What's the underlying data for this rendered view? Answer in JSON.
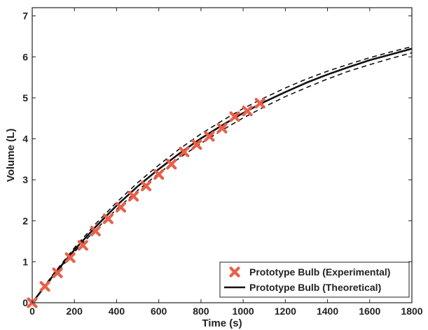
{
  "chart_data": {
    "type": "line",
    "title": "",
    "xlabel": "Time (s)",
    "ylabel": "Volume (L)",
    "xlim": [
      0,
      1800
    ],
    "ylim": [
      0,
      7.2
    ],
    "x_ticks": [
      0,
      200,
      400,
      600,
      800,
      1000,
      1200,
      1400,
      1600,
      1800
    ],
    "y_ticks": [
      0,
      1,
      2,
      3,
      4,
      5,
      6,
      7
    ],
    "grid": false,
    "legend_position": "bottom-right",
    "series": [
      {
        "name": "Prototype Bulb (Experimental)",
        "kind": "scatter",
        "marker": "x",
        "color": "#e8604a",
        "points": [
          {
            "x": 0,
            "y": 0.0
          },
          {
            "x": 60,
            "y": 0.4
          },
          {
            "x": 120,
            "y": 0.73
          },
          {
            "x": 180,
            "y": 1.1
          },
          {
            "x": 240,
            "y": 1.4
          },
          {
            "x": 300,
            "y": 1.75
          },
          {
            "x": 360,
            "y": 2.05
          },
          {
            "x": 420,
            "y": 2.33
          },
          {
            "x": 480,
            "y": 2.6
          },
          {
            "x": 540,
            "y": 2.85
          },
          {
            "x": 600,
            "y": 3.13
          },
          {
            "x": 660,
            "y": 3.38
          },
          {
            "x": 720,
            "y": 3.68
          },
          {
            "x": 780,
            "y": 3.86
          },
          {
            "x": 840,
            "y": 4.06
          },
          {
            "x": 900,
            "y": 4.26
          },
          {
            "x": 960,
            "y": 4.54
          },
          {
            "x": 1020,
            "y": 4.68
          },
          {
            "x": 1080,
            "y": 4.87
          }
        ]
      },
      {
        "name": "Prototype Bulb (Theoretical)",
        "kind": "line",
        "style": "solid",
        "color": "#111111",
        "points": [
          {
            "x": 0,
            "y": 0.0
          },
          {
            "x": 100,
            "y": 0.67
          },
          {
            "x": 200,
            "y": 1.29
          },
          {
            "x": 300,
            "y": 1.85
          },
          {
            "x": 400,
            "y": 2.37
          },
          {
            "x": 500,
            "y": 2.84
          },
          {
            "x": 600,
            "y": 3.26
          },
          {
            "x": 700,
            "y": 3.65
          },
          {
            "x": 800,
            "y": 4.01
          },
          {
            "x": 900,
            "y": 4.33
          },
          {
            "x": 1000,
            "y": 4.63
          },
          {
            "x": 1100,
            "y": 4.9
          },
          {
            "x": 1200,
            "y": 5.14
          },
          {
            "x": 1300,
            "y": 5.37
          },
          {
            "x": 1400,
            "y": 5.57
          },
          {
            "x": 1500,
            "y": 5.75
          },
          {
            "x": 1600,
            "y": 5.92
          },
          {
            "x": 1700,
            "y": 6.06
          },
          {
            "x": 1800,
            "y": 6.2
          }
        ]
      },
      {
        "kind": "line",
        "style": "dashed",
        "color": "#111111",
        "points": [
          {
            "x": 0,
            "y": 0.0
          },
          {
            "x": 100,
            "y": 0.7
          },
          {
            "x": 200,
            "y": 1.34
          },
          {
            "x": 300,
            "y": 1.92
          },
          {
            "x": 400,
            "y": 2.45
          },
          {
            "x": 500,
            "y": 2.93
          },
          {
            "x": 600,
            "y": 3.36
          },
          {
            "x": 700,
            "y": 3.76
          },
          {
            "x": 800,
            "y": 4.12
          },
          {
            "x": 900,
            "y": 4.44
          },
          {
            "x": 1000,
            "y": 4.74
          },
          {
            "x": 1100,
            "y": 5.0
          },
          {
            "x": 1200,
            "y": 5.24
          },
          {
            "x": 1300,
            "y": 5.46
          },
          {
            "x": 1400,
            "y": 5.65
          },
          {
            "x": 1500,
            "y": 5.82
          },
          {
            "x": 1600,
            "y": 5.98
          },
          {
            "x": 1700,
            "y": 6.12
          },
          {
            "x": 1800,
            "y": 6.25
          }
        ]
      },
      {
        "kind": "line",
        "style": "dashed",
        "color": "#111111",
        "points": [
          {
            "x": 0,
            "y": 0.0
          },
          {
            "x": 100,
            "y": 0.64
          },
          {
            "x": 200,
            "y": 1.24
          },
          {
            "x": 300,
            "y": 1.78
          },
          {
            "x": 400,
            "y": 2.28
          },
          {
            "x": 500,
            "y": 2.74
          },
          {
            "x": 600,
            "y": 3.16
          },
          {
            "x": 700,
            "y": 3.54
          },
          {
            "x": 800,
            "y": 3.89
          },
          {
            "x": 900,
            "y": 4.21
          },
          {
            "x": 1000,
            "y": 4.51
          },
          {
            "x": 1100,
            "y": 4.78
          },
          {
            "x": 1200,
            "y": 5.03
          },
          {
            "x": 1300,
            "y": 5.25
          },
          {
            "x": 1400,
            "y": 5.46
          },
          {
            "x": 1500,
            "y": 5.65
          },
          {
            "x": 1600,
            "y": 5.81
          },
          {
            "x": 1700,
            "y": 5.96
          },
          {
            "x": 1800,
            "y": 6.1
          }
        ]
      }
    ]
  }
}
